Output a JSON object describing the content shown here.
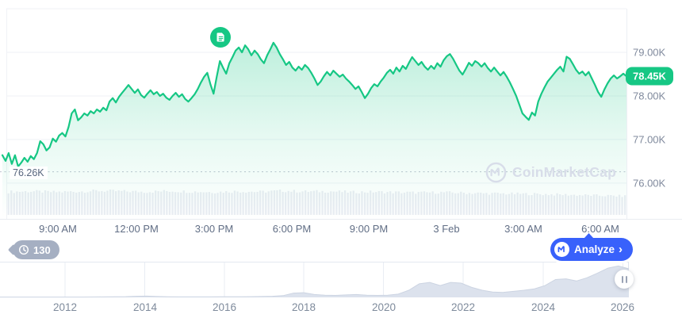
{
  "widget": {
    "current_price_label": "78.45K",
    "open_price_label": "76.26K",
    "news_count": "130",
    "analyze_label": "Analyze",
    "analyze_chevron": "›",
    "watermark_text": "CoinMarketCap"
  },
  "colors": {
    "accent_green": "#16c784",
    "accent_blue": "#3861fb",
    "badge_gray": "#a5afc2",
    "axis_text": "#808a9d",
    "watermark": "#d8dde9"
  },
  "chart_data": {
    "type": "line",
    "series_name": "price",
    "unit": "K USD",
    "grid": true,
    "legend": false,
    "y_ticks": [
      "79.00K",
      "78.00K",
      "77.00K",
      "76.00K"
    ],
    "x_ticks": [
      "9:00 AM",
      "12:00 PM",
      "3:00 PM",
      "6:00 PM",
      "9:00 PM",
      "3 Feb",
      "3:00 AM",
      "6:00 AM"
    ],
    "y_axis": {
      "min": 75.18,
      "max": 80.0,
      "gridlines_K": [
        80,
        79,
        78,
        77,
        76
      ]
    },
    "open_price_K": 76.26,
    "current_price_K": 78.45,
    "price_K": [
      76.64,
      76.51,
      76.69,
      76.44,
      76.64,
      76.38,
      76.47,
      76.58,
      76.49,
      76.62,
      76.55,
      76.69,
      76.96,
      76.89,
      76.75,
      76.82,
      77.02,
      76.95,
      77.09,
      77.15,
      77.07,
      77.29,
      77.6,
      77.69,
      77.44,
      77.51,
      77.6,
      77.55,
      77.65,
      77.6,
      77.69,
      77.64,
      77.73,
      77.67,
      77.87,
      77.95,
      77.85,
      77.98,
      78.07,
      78.16,
      78.25,
      78.16,
      78.07,
      78.15,
      78.02,
      77.96,
      78.05,
      78.13,
      78.04,
      78.09,
      78.0,
      78.05,
      77.96,
      77.91,
      78.0,
      78.07,
      77.98,
      78.04,
      77.93,
      77.87,
      77.95,
      78.04,
      78.16,
      78.31,
      78.44,
      78.53,
      78.27,
      78.05,
      78.44,
      78.8,
      78.65,
      78.51,
      78.75,
      78.89,
      79.04,
      79.11,
      79.0,
      79.16,
      79.07,
      78.93,
      79.04,
      78.96,
      78.84,
      78.75,
      78.93,
      79.07,
      79.22,
      79.11,
      78.96,
      78.84,
      78.71,
      78.78,
      78.65,
      78.58,
      78.67,
      78.6,
      78.71,
      78.64,
      78.53,
      78.4,
      78.25,
      78.33,
      78.45,
      78.55,
      78.47,
      78.58,
      78.51,
      78.44,
      78.49,
      78.4,
      78.33,
      78.25,
      78.16,
      78.22,
      78.09,
      77.95,
      78.05,
      78.18,
      78.27,
      78.22,
      78.33,
      78.42,
      78.53,
      78.6,
      78.51,
      78.65,
      78.56,
      78.69,
      78.62,
      78.76,
      78.89,
      78.8,
      78.71,
      78.78,
      78.67,
      78.6,
      78.69,
      78.62,
      78.75,
      78.67,
      78.82,
      78.91,
      78.96,
      78.85,
      78.71,
      78.58,
      78.49,
      78.62,
      78.76,
      78.69,
      78.8,
      78.75,
      78.67,
      78.75,
      78.64,
      78.56,
      78.65,
      78.56,
      78.47,
      78.55,
      78.44,
      78.31,
      78.16,
      78.0,
      77.8,
      77.6,
      77.52,
      77.45,
      77.62,
      77.55,
      77.87,
      78.05,
      78.2,
      78.33,
      78.42,
      78.51,
      78.6,
      78.67,
      78.56,
      78.9,
      78.85,
      78.73,
      78.6,
      78.51,
      78.56,
      78.47,
      78.55,
      78.4,
      78.25,
      78.09,
      77.98,
      78.15,
      78.29,
      78.4,
      78.47,
      78.4,
      78.45,
      78.51,
      78.45
    ],
    "volume_profile": [
      0.86,
      0.88,
      0.85,
      0.87,
      0.9,
      0.88,
      0.86,
      0.89,
      0.87,
      0.85,
      0.88,
      0.86,
      0.9,
      0.87,
      0.88,
      0.85,
      0.86,
      0.84,
      0.83,
      0.84,
      0.82,
      0.8,
      0.79,
      0.78,
      0.76,
      0.74,
      0.72,
      0.7
    ],
    "timeline": {
      "years": [
        "2012",
        "2014",
        "2016",
        "2018",
        "2020",
        "2022",
        "2024",
        "2026"
      ],
      "values": [
        0.01,
        0.01,
        0.01,
        0.01,
        0.01,
        0.01,
        0.01,
        0.01,
        0.01,
        0.012,
        0.013,
        0.015,
        0.02,
        0.03,
        0.035,
        0.025,
        0.018,
        0.014,
        0.013,
        0.013,
        0.014,
        0.015,
        0.016,
        0.018,
        0.02,
        0.025,
        0.03,
        0.05,
        0.12,
        0.13,
        0.08,
        0.06,
        0.055,
        0.07,
        0.08,
        0.06,
        0.055,
        0.06,
        0.09,
        0.2,
        0.38,
        0.42,
        0.33,
        0.42,
        0.4,
        0.28,
        0.2,
        0.15,
        0.14,
        0.17,
        0.2,
        0.24,
        0.33,
        0.5,
        0.52,
        0.46,
        0.55,
        0.68,
        0.82,
        0.88,
        0.8
      ]
    }
  }
}
